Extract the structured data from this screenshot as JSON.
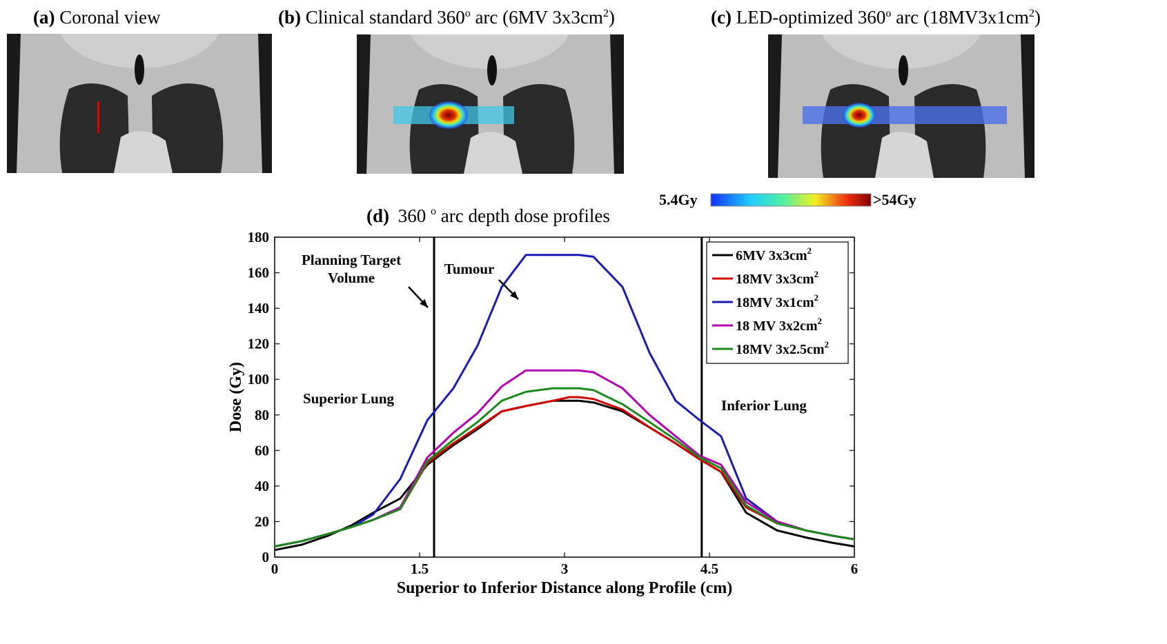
{
  "panels": {
    "a": {
      "letter": "(a)",
      "title": "Coronal view"
    },
    "b": {
      "letter": "(b)",
      "title_pre": "Clinical standard 360",
      "sup1": "o",
      "title_mid": " arc (6MV 3x3cm",
      "sup2": "2",
      "title_post": ")"
    },
    "c": {
      "letter": "(c)",
      "title_pre": "LED-optimized 360",
      "sup1": "o",
      "title_mid": " arc (18MV3x1cm",
      "sup2": "2",
      "title_post": ")"
    }
  },
  "colorbar": {
    "min_label": "5.4Gy",
    "max_label": ">54Gy"
  },
  "chart_data": {
    "type": "line",
    "title_letter": "(d)",
    "title_pre": "360",
    "title_sup": "o",
    "title_post": " arc depth dose profiles",
    "xlabel": "Superior to Inferior Distance along Profile (cm)",
    "ylabel": "Dose (Gy)",
    "xlim": [
      0,
      6
    ],
    "ylim": [
      0,
      180
    ],
    "xticks": [
      0,
      1.5,
      3,
      4.5,
      6
    ],
    "xtick_labels": [
      "0",
      "1.5",
      "3",
      "4.5",
      "6"
    ],
    "yticks": [
      0,
      20,
      40,
      60,
      80,
      100,
      120,
      140,
      160,
      180
    ],
    "ytick_labels": [
      "0",
      "20",
      "40",
      "60",
      "80",
      "100",
      "120",
      "140",
      "160",
      "180"
    ],
    "vlines": [
      1.65,
      4.42
    ],
    "annotations": {
      "ptv_line1": "Planning Target",
      "ptv_line2": "Volume",
      "tumour": "Tumour",
      "superior_lung": "Superior Lung",
      "inferior_lung": "Inferior Lung"
    },
    "x": [
      0,
      0.28,
      0.55,
      0.8,
      1.02,
      1.3,
      1.58,
      1.85,
      2.1,
      2.35,
      2.6,
      2.88,
      3.05,
      3.15,
      3.3,
      3.6,
      3.88,
      4.15,
      4.4,
      4.62,
      4.88,
      5.2,
      5.5,
      5.78,
      6.0
    ],
    "series": [
      {
        "name_main": "6MV 3x3cm",
        "name_sup": "2",
        "color": "#000000",
        "values": [
          4,
          7,
          12,
          18,
          25,
          33,
          52,
          63,
          72,
          82,
          85,
          88,
          88,
          88,
          87,
          82,
          73,
          64,
          55,
          48,
          25,
          15,
          11,
          8,
          6
        ]
      },
      {
        "name_main": "18MV 3x3cm",
        "name_sup": "2",
        "color": "#d40000",
        "values": [
          6,
          9,
          13,
          17,
          21,
          27,
          53,
          64,
          73,
          82,
          85,
          88,
          90,
          90,
          89,
          83,
          73,
          64,
          55,
          48,
          28,
          19,
          15,
          12,
          10
        ]
      },
      {
        "name_main": "18MV 3x1cm",
        "name_sup": "2",
        "color": "#1a1ab4",
        "values": [
          6,
          9,
          13,
          17,
          24,
          44,
          77,
          95,
          119,
          152,
          170,
          170,
          170,
          170,
          169,
          152,
          115,
          88,
          77,
          68,
          33,
          20,
          15,
          12,
          10
        ]
      },
      {
        "name_main": "18 MV 3x2cm",
        "name_sup": "2",
        "color": "#b400b4",
        "values": [
          6,
          9,
          13,
          17,
          21,
          28,
          56,
          70,
          81,
          96,
          105,
          105,
          105,
          105,
          104,
          95,
          80,
          68,
          57,
          52,
          31,
          20,
          15,
          12,
          10
        ]
      },
      {
        "name_main": "18MV 3x2.5cm",
        "name_sup": "2",
        "color": "#1a8a1a",
        "values": [
          6,
          9,
          13,
          17,
          21,
          27,
          54,
          66,
          76,
          88,
          93,
          95,
          95,
          95,
          94,
          86,
          76,
          66,
          56,
          50,
          29,
          19,
          15,
          12,
          10
        ]
      }
    ]
  }
}
